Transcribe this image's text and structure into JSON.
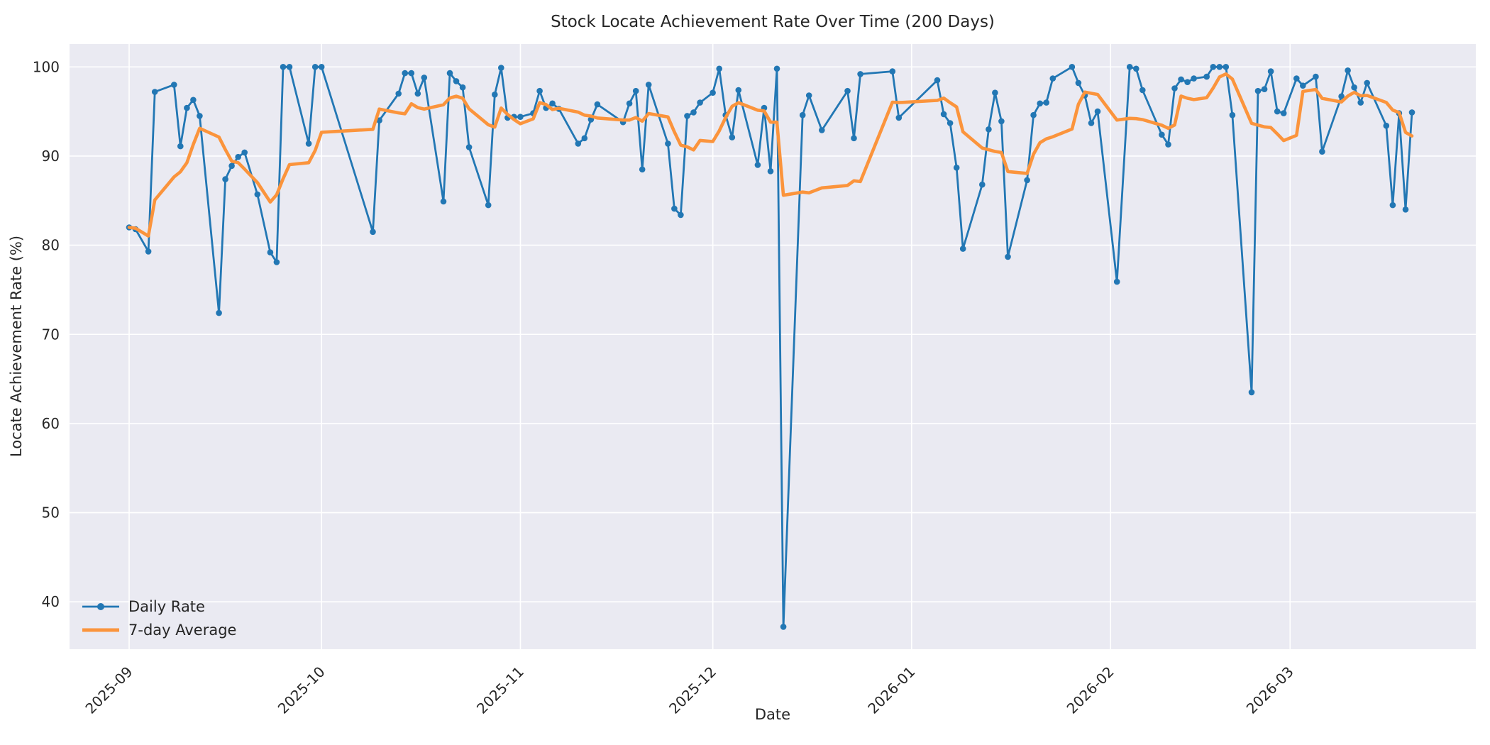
{
  "title": "Stock Locate Achievement Rate Over Time (200 Days)",
  "xlabel": "Date",
  "ylabel": "Locate Achievement Rate (%)",
  "legend": {
    "items": [
      {
        "label": "Daily Rate"
      },
      {
        "label": "7-day Average"
      }
    ],
    "position": "lower left"
  },
  "colors": {
    "daily": "#2277b4",
    "average": "#fb943c",
    "plot_bg": "#eaeaf2",
    "grid": "#ffffff",
    "text": "#262626",
    "figure_bg": "#ffffff"
  },
  "chart_data": {
    "type": "line",
    "title": "Stock Locate Achievement Rate Over Time (200 Days)",
    "xlabel": "Date",
    "ylabel": "Locate Achievement Rate (%)",
    "grid": true,
    "legend_position": "lower left",
    "x_axis": {
      "kind": "date",
      "start_date": "2025-09-01",
      "tick_labels": [
        "2025-09",
        "2025-10",
        "2025-11",
        "2025-12",
        "2026-01",
        "2026-02",
        "2026-03"
      ],
      "tick_day_offsets": [
        0,
        30,
        61,
        91,
        122,
        153,
        181
      ],
      "tick_rotation_deg": 45
    },
    "y_axis": {
      "ticks": [
        40,
        50,
        60,
        70,
        80,
        90,
        100
      ],
      "ylim": [
        34.66,
        102.57
      ]
    },
    "series": [
      {
        "name": "Daily Rate",
        "style": "line_with_markers",
        "points_format": "[day_offset_from_2025-09-01, rate_percent]",
        "points": [
          [
            0,
            82.0
          ],
          [
            1,
            81.8
          ],
          [
            3,
            79.3
          ],
          [
            4,
            97.2
          ],
          [
            7,
            98.0
          ],
          [
            8,
            91.1
          ],
          [
            9,
            95.4
          ],
          [
            10,
            96.3
          ],
          [
            11,
            94.5
          ],
          [
            14,
            72.4
          ],
          [
            15,
            87.4
          ],
          [
            16,
            88.9
          ],
          [
            17,
            89.9
          ],
          [
            18,
            90.4
          ],
          [
            20,
            85.7
          ],
          [
            22,
            79.2
          ],
          [
            23,
            78.1
          ],
          [
            24,
            100.0
          ],
          [
            25,
            100.0
          ],
          [
            28,
            91.4
          ],
          [
            29,
            100.0
          ],
          [
            30,
            100.0
          ],
          [
            38,
            81.5
          ],
          [
            39,
            94.0
          ],
          [
            42,
            97.0
          ],
          [
            43,
            99.3
          ],
          [
            44,
            99.3
          ],
          [
            45,
            97.0
          ],
          [
            46,
            98.8
          ],
          [
            49,
            84.9
          ],
          [
            50,
            99.3
          ],
          [
            51,
            98.4
          ],
          [
            52,
            97.7
          ],
          [
            53,
            91.0
          ],
          [
            56,
            84.5
          ],
          [
            57,
            96.9
          ],
          [
            58,
            99.9
          ],
          [
            59,
            94.3
          ],
          [
            60,
            94.4
          ],
          [
            61,
            94.4
          ],
          [
            63,
            94.8
          ],
          [
            64,
            97.3
          ],
          [
            65,
            95.4
          ],
          [
            66,
            95.9
          ],
          [
            67,
            95.3
          ],
          [
            70,
            91.4
          ],
          [
            71,
            92.0
          ],
          [
            72,
            94.1
          ],
          [
            73,
            95.8
          ],
          [
            77,
            93.8
          ],
          [
            78,
            95.9
          ],
          [
            79,
            97.3
          ],
          [
            80,
            88.5
          ],
          [
            81,
            98.0
          ],
          [
            84,
            91.4
          ],
          [
            85,
            84.1
          ],
          [
            86,
            83.4
          ],
          [
            87,
            94.5
          ],
          [
            88,
            94.9
          ],
          [
            89,
            96.0
          ],
          [
            91,
            97.1
          ],
          [
            92,
            99.8
          ],
          [
            93,
            94.6
          ],
          [
            94,
            92.1
          ],
          [
            95,
            97.4
          ],
          [
            98,
            89.0
          ],
          [
            99,
            95.4
          ],
          [
            100,
            88.3
          ],
          [
            101,
            99.8
          ],
          [
            102,
            37.2
          ],
          [
            105,
            94.6
          ],
          [
            106,
            96.8
          ],
          [
            108,
            92.9
          ],
          [
            112,
            97.3
          ],
          [
            113,
            92.0
          ],
          [
            114,
            99.2
          ],
          [
            119,
            99.5
          ],
          [
            120,
            94.3
          ],
          [
            126,
            98.5
          ],
          [
            127,
            94.7
          ],
          [
            128,
            93.7
          ],
          [
            129,
            88.7
          ],
          [
            130,
            79.6
          ],
          [
            133,
            86.8
          ],
          [
            134,
            93.0
          ],
          [
            135,
            97.1
          ],
          [
            136,
            93.9
          ],
          [
            137,
            78.7
          ],
          [
            140,
            87.3
          ],
          [
            141,
            94.6
          ],
          [
            142,
            95.9
          ],
          [
            143,
            96.0
          ],
          [
            144,
            98.7
          ],
          [
            147,
            100.0
          ],
          [
            148,
            98.2
          ],
          [
            149,
            96.8
          ],
          [
            150,
            93.7
          ],
          [
            151,
            95.0
          ],
          [
            154,
            75.9
          ],
          [
            156,
            100.0
          ],
          [
            157,
            99.8
          ],
          [
            158,
            97.4
          ],
          [
            161,
            92.4
          ],
          [
            162,
            91.3
          ],
          [
            163,
            97.6
          ],
          [
            164,
            98.6
          ],
          [
            165,
            98.3
          ],
          [
            166,
            98.7
          ],
          [
            168,
            98.9
          ],
          [
            169,
            100.0
          ],
          [
            170,
            100.0
          ],
          [
            171,
            100.0
          ],
          [
            172,
            94.6
          ],
          [
            175,
            63.5
          ],
          [
            176,
            97.3
          ],
          [
            177,
            97.5
          ],
          [
            178,
            99.5
          ],
          [
            179,
            95.0
          ],
          [
            180,
            94.8
          ],
          [
            182,
            98.7
          ],
          [
            183,
            97.9
          ],
          [
            185,
            98.9
          ],
          [
            186,
            90.5
          ],
          [
            189,
            96.7
          ],
          [
            190,
            99.6
          ],
          [
            191,
            97.7
          ],
          [
            192,
            96.0
          ],
          [
            193,
            98.2
          ],
          [
            196,
            93.4
          ],
          [
            197,
            84.5
          ],
          [
            198,
            94.8
          ],
          [
            199,
            84.0
          ],
          [
            200,
            94.9
          ]
        ]
      },
      {
        "name": "7-day Average",
        "style": "thick_line",
        "derived": "rolling_mean_of_last_7_data_points_min_periods_1"
      }
    ]
  }
}
